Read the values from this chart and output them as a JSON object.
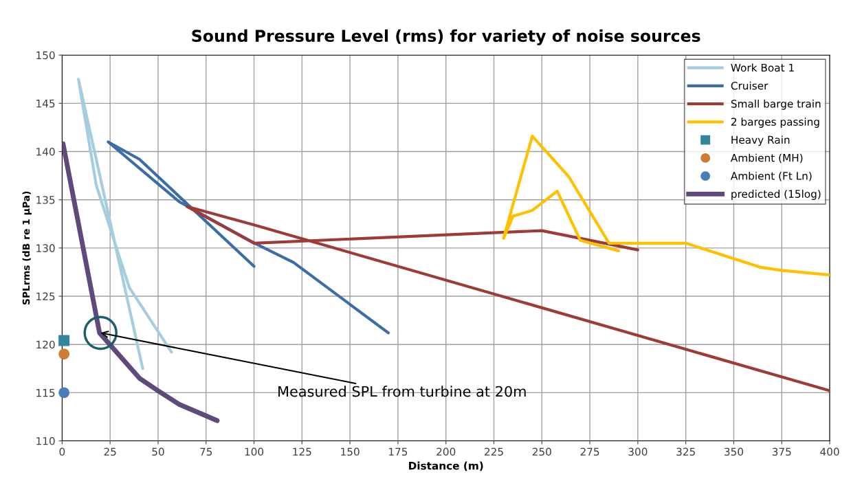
{
  "chart_data": {
    "type": "line",
    "title": "Sound Pressure Level (rms) for variety of noise sources",
    "xlabel": "Distance (m)",
    "ylabel": "SPLrms (dB re 1 µPa)",
    "xlim": [
      0,
      400
    ],
    "xticks": [
      0,
      25,
      50,
      75,
      100,
      125,
      150,
      175,
      200,
      225,
      250,
      275,
      300,
      325,
      350,
      375,
      400
    ],
    "ylim": [
      110,
      150
    ],
    "yticks": [
      110,
      115,
      120,
      125,
      130,
      135,
      140,
      145,
      150
    ],
    "grid": true,
    "legend": "top right",
    "series": [
      {
        "name": "Work Boat 1",
        "color": "#a5cde0",
        "x": [
          57,
          35,
          17.8,
          8.5,
          42
        ],
        "values": [
          119.2,
          125.9,
          136.5,
          147.5,
          117.5
        ]
      },
      {
        "name": "Cruiser",
        "color": "#3a6ea5",
        "x": [
          100,
          40.3,
          24,
          61,
          100.3,
          120.6,
          170
        ],
        "values": [
          128.1,
          139.2,
          141,
          134.8,
          130.5,
          128.5,
          121.2
        ]
      },
      {
        "name": "Small barge train",
        "color": "#9e3a38",
        "x": [
          400,
          100,
          65,
          100,
          250,
          300
        ],
        "values": [
          115.2,
          132.4,
          134.3,
          130.5,
          131.8,
          129.8
        ]
      },
      {
        "name": "2 barges passing",
        "color": "#ffc000",
        "x": [
          290,
          270,
          258,
          245,
          235,
          230,
          245,
          264,
          285,
          325,
          364,
          374,
          400
        ],
        "values": [
          129.7,
          130.8,
          135.9,
          133.9,
          133.3,
          131.0,
          141.6,
          137.4,
          130.5,
          130.5,
          128.0,
          127.7,
          127.2
        ]
      },
      {
        "name": "Heavy Rain",
        "type": "scatter",
        "marker": "square",
        "color": "#31859c",
        "x": [
          1
        ],
        "values": [
          120.4
        ]
      },
      {
        "name": "Ambient (MH)",
        "type": "scatter",
        "marker": "circle",
        "color": "#d07b35",
        "x": [
          1
        ],
        "values": [
          119
        ]
      },
      {
        "name": "Ambient (Ft Ln)",
        "type": "scatter",
        "marker": "circle",
        "color": "#4a7ebb",
        "x": [
          1
        ],
        "values": [
          115
        ]
      },
      {
        "name": "predicted (15log)",
        "color": "#604a7b",
        "x": [
          0.5,
          19.5,
          40.3,
          50,
          60.9,
          80.8
        ],
        "values": [
          140.8,
          121.2,
          116.5,
          115.2,
          113.8,
          112.1
        ]
      }
    ],
    "annotations": [
      {
        "text": "Measured SPL from turbine at 20m",
        "x": 20,
        "y": 121.2
      }
    ]
  }
}
